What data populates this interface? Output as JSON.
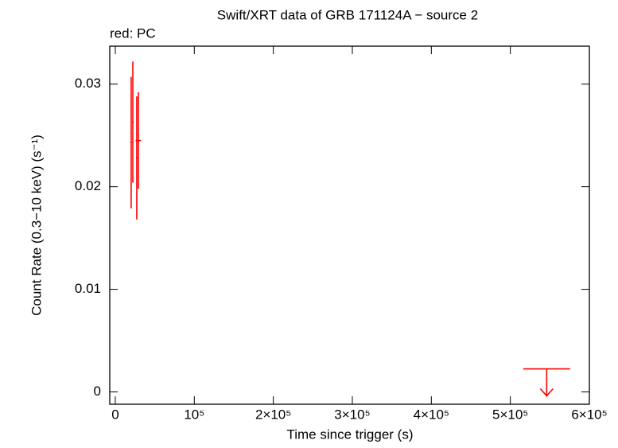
{
  "chart_data": {
    "type": "errorbar",
    "title": "Swift/XRT data of GRB 171124A − source 2",
    "subtitle": "red: PC",
    "x_label": "Time since trigger (s)",
    "y_label": "Count Rate (0.3−10 keV) (s⁻¹)",
    "color": "#ff0000",
    "series": [
      {
        "name": "PC",
        "color": "#ff0000",
        "x": [
          20100,
          22200,
          27200,
          29200
        ],
        "xerr": [
          1000,
          1000,
          1000,
          3500
        ],
        "values": [
          0.0243,
          0.0263,
          0.0228,
          0.0245
        ],
        "yerr": [
          0.0064,
          0.0059,
          0.006,
          0.0047
        ]
      }
    ],
    "upper_limits": [
      {
        "x": 546000,
        "xerr": 29700,
        "y": 0.00225
      }
    ],
    "xlim": [
      -7000,
      600000
    ],
    "ylim": [
      -0.0012,
      0.0337
    ],
    "xticks": [
      0,
      {
        "value": 100000,
        "label": "10⁵"
      },
      {
        "value": 200000,
        "label": "2×10⁵"
      },
      {
        "value": 300000,
        "label": "3×10⁵"
      },
      {
        "value": 400000,
        "label": "4×10⁵"
      },
      {
        "value": 500000,
        "label": "5×10⁵"
      },
      {
        "value": 600000,
        "label": "6×10⁵"
      }
    ],
    "yticks": [
      0,
      0.01,
      0.02,
      0.03
    ]
  }
}
